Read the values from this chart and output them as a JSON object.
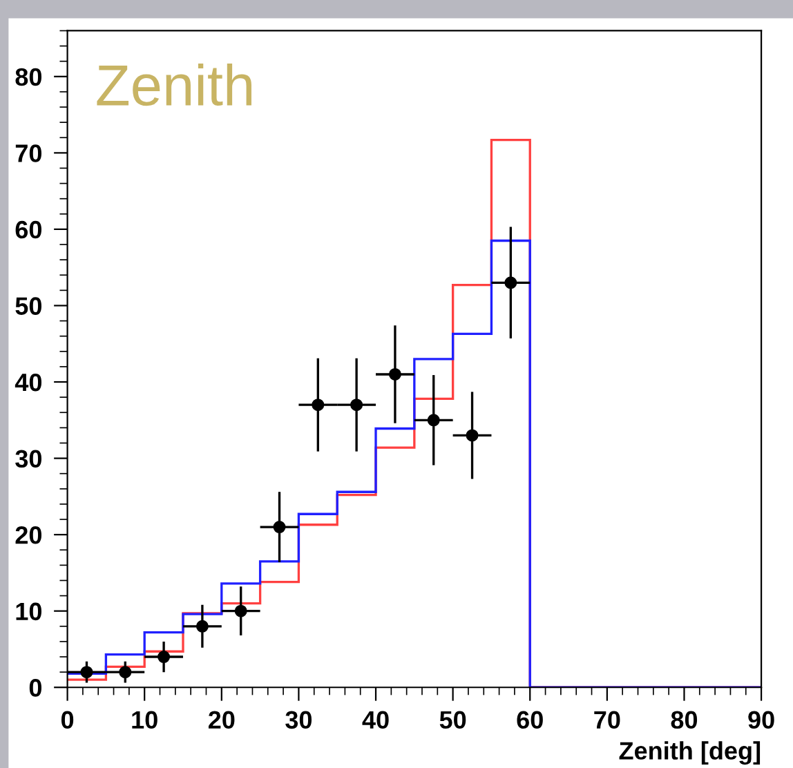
{
  "chart_data": {
    "type": "histogram",
    "title": "Zenith",
    "xlabel": "Zenith [deg]",
    "bins": [
      0,
      5,
      10,
      15,
      20,
      25,
      30,
      35,
      40,
      45,
      50,
      55,
      60,
      65,
      70,
      75,
      80,
      85,
      90
    ],
    "series": [
      {
        "type": "histogram",
        "color": "#ff4040",
        "values": [
          1.0,
          2.7,
          4.7,
          9.7,
          11.0,
          13.8,
          21.3,
          25.2,
          31.4,
          37.8,
          52.7,
          71.7,
          0,
          0,
          0,
          0,
          0,
          0
        ]
      },
      {
        "type": "histogram",
        "color": "#2020ff",
        "values": [
          1.8,
          4.3,
          7.2,
          9.6,
          13.6,
          16.5,
          22.7,
          25.6,
          33.9,
          43.0,
          46.3,
          58.5,
          0,
          0,
          0,
          0,
          0,
          0
        ]
      },
      {
        "type": "scatter",
        "color": "#000000",
        "marker": "circle",
        "x": [
          2.5,
          7.5,
          12.5,
          17.5,
          22.5,
          27.5,
          32.5,
          37.5,
          42.5,
          47.5,
          52.5,
          57.5
        ],
        "values": [
          2,
          2,
          4,
          8,
          10,
          21,
          37,
          37,
          41,
          35,
          33,
          53
        ],
        "errors": [
          1.4,
          1.4,
          2.0,
          2.8,
          3.2,
          4.6,
          6.1,
          6.1,
          6.4,
          5.9,
          5.7,
          7.3
        ],
        "xerrors": [
          2.5,
          2.5,
          2.5,
          2.5,
          2.5,
          2.5,
          2.5,
          2.5,
          2.5,
          2.5,
          2.5,
          2.5
        ]
      }
    ],
    "xlim": [
      0,
      90
    ],
    "xticks": [
      0,
      10,
      20,
      30,
      40,
      50,
      60,
      70,
      80,
      90
    ],
    "ylim": [
      0,
      86
    ],
    "yticks": [
      0,
      10,
      20,
      30,
      40,
      50,
      60,
      70,
      80
    ],
    "grid": false,
    "legend": false
  }
}
